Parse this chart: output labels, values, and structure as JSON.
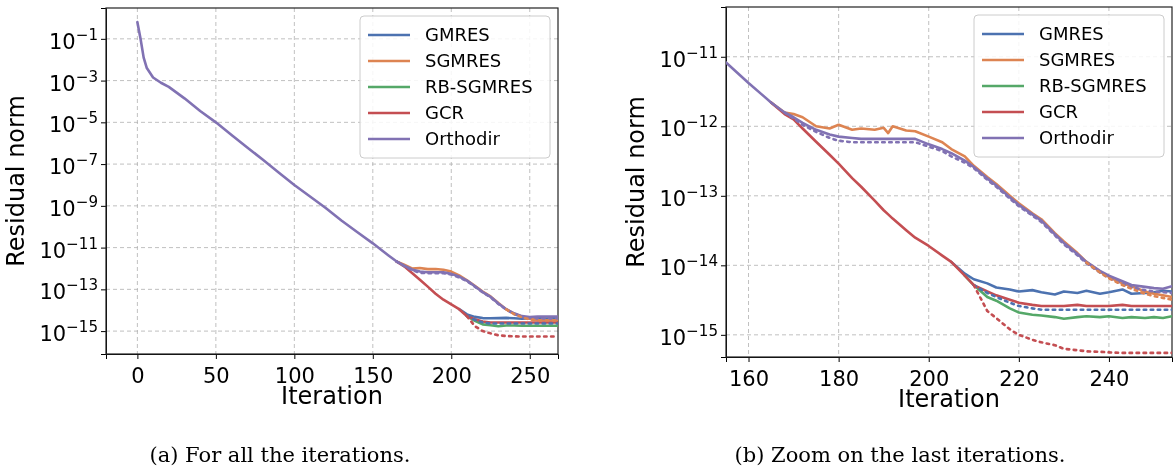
{
  "chart_data": [
    {
      "type": "line",
      "xlabel": "Iteration",
      "ylabel": "Residual norm",
      "log": "y",
      "grid": true,
      "legend": "top right",
      "annotations": [
        "(a) For all the iterations."
      ],
      "xlim": [
        -20,
        268
      ],
      "xticks": [
        0,
        50,
        100,
        150,
        200,
        250
      ],
      "ylim": [
        8e-17,
        3
      ],
      "yticks": [
        {
          "value": 0.1,
          "label": "10$^{−1}$"
        },
        {
          "value": 0.001,
          "label": "10$^{−3}$"
        },
        {
          "value": 1e-05,
          "label": "10$^{−5}$"
        },
        {
          "value": 1e-07,
          "label": "10$^{−7}$"
        },
        {
          "value": 1e-09,
          "label": "10$^{−9}$"
        },
        {
          "value": 1e-11,
          "label": "10$^{−11}$"
        },
        {
          "value": 1e-13,
          "label": "10$^{−13}$"
        },
        {
          "value": 1e-15,
          "label": "10$^{−15}$"
        }
      ],
      "x": [
        0,
        2,
        4,
        6,
        10,
        15,
        20,
        30,
        40,
        50,
        60,
        70,
        80,
        90,
        100,
        110,
        120,
        130,
        140,
        150,
        160,
        165,
        170,
        175,
        180,
        185,
        190,
        195,
        200,
        205,
        210,
        215,
        220,
        225,
        230,
        235,
        240,
        245,
        250,
        255,
        260,
        265,
        268
      ],
      "series": [
        {
          "name": "GMRES",
          "color": "#4c72b0",
          "values": [
            null,
            null,
            null,
            null,
            null,
            null,
            null,
            null,
            null,
            null,
            null,
            null,
            null,
            null,
            null,
            null,
            null,
            null,
            null,
            null,
            null,
            null,
            null,
            null,
            null,
            null,
            null,
            null,
            null,
            1.12e-14,
            6.3e-15,
            4.8e-15,
            4.2e-15,
            4.1e-15,
            4.2e-15,
            4.3e-15,
            4.1e-15,
            3.9e-15,
            4.1e-15,
            4.2e-15,
            4e-15,
            4.1e-15,
            4e-15
          ]
        },
        {
          "name": "SGMRES",
          "color": "#dd8452",
          "values": [
            null,
            null,
            null,
            null,
            null,
            null,
            null,
            null,
            null,
            null,
            null,
            null,
            null,
            null,
            null,
            null,
            null,
            null,
            null,
            null,
            null,
            2.2e-12,
            1.5e-12,
            1e-12,
            1.05e-12,
            9.3e-13,
            9.5e-13,
            8.7e-13,
            7.1e-13,
            4.7e-13,
            2.7e-13,
            1.48e-13,
            7.8e-14,
            4.6e-14,
            2.2e-14,
            1.12e-14,
            6.8e-15,
            5e-15,
            3.9e-15,
            3.4e-15,
            3.3e-15,
            3.3e-15,
            3.3e-15
          ]
        },
        {
          "name": "RB-SGMRES",
          "color": "#55a868",
          "values": [
            null,
            null,
            null,
            null,
            null,
            null,
            null,
            null,
            null,
            null,
            null,
            null,
            null,
            null,
            null,
            null,
            null,
            null,
            null,
            null,
            null,
            null,
            null,
            null,
            null,
            null,
            null,
            null,
            null,
            null,
            5.2e-15,
            3.1e-15,
            2.1e-15,
            1.9e-15,
            1.7e-15,
            1.85e-15,
            1.85e-15,
            1.8e-15,
            1.8e-15,
            1.8e-15,
            1.8e-15,
            1.8e-15,
            1.8e-15
          ]
        },
        {
          "name": "GCR",
          "color": "#c44e52",
          "values": [
            null,
            null,
            null,
            null,
            null,
            null,
            null,
            null,
            null,
            null,
            null,
            null,
            null,
            null,
            null,
            null,
            null,
            null,
            null,
            null,
            null,
            2.2e-12,
            1.26e-12,
            6e-13,
            2.9e-13,
            1.35e-13,
            6.2e-14,
            3.2e-14,
            1.9e-14,
            1.12e-14,
            5.2e-15,
            3.7e-15,
            2.9e-15,
            2.6e-15,
            2.6e-15,
            2.6e-15,
            2.6e-15,
            2.6e-15,
            2.6e-15,
            2.6e-15,
            2.6e-15,
            2.6e-15,
            2.6e-15
          ]
        },
        {
          "name": "Orthodir",
          "color": "#8172b3",
          "values": [
            0.63,
            0.1,
            0.0126,
            0.00398,
            0.00141,
            0.00079,
            0.0005,
            0.000141,
            3.5e-05,
            1e-05,
            2.5e-06,
            6.3e-07,
            1.6e-07,
            4e-08,
            1e-08,
            2.8e-09,
            7.9e-10,
            2e-10,
            5.6e-11,
            1.6e-11,
            4.2e-12,
            2.2e-12,
            1.35e-12,
            8.9e-13,
            7.1e-13,
            6.6e-13,
            6.6e-13,
            6.6e-13,
            5.5e-13,
            4.1e-13,
            2.6e-13,
            1.41e-13,
            7.4e-14,
            4.4e-14,
            2.1e-14,
            1.12e-14,
            7.1e-15,
            5.2e-15,
            4.7e-15,
            5e-15,
            5e-15,
            5e-15,
            5e-15
          ]
        },
        {
          "color": "#8172b3",
          "line_style": "dotted",
          "values": [
            null,
            null,
            null,
            null,
            null,
            null,
            null,
            null,
            null,
            null,
            null,
            null,
            null,
            null,
            null,
            null,
            null,
            null,
            null,
            null,
            null,
            2.2e-12,
            1.3e-12,
            8.3e-13,
            6.2e-13,
            5.9e-13,
            5.9e-13,
            5.9e-13,
            5.1e-13,
            3.7e-13,
            2.5e-13,
            1.35e-13,
            7.1e-14,
            4.2e-14,
            2e-14,
            1.07e-14,
            6.6e-15,
            4.8e-15,
            4.2e-15,
            4e-15,
            4e-15,
            4e-15,
            4e-15
          ]
        },
        {
          "color": "#dd8452",
          "line_style": "dotted",
          "values": [
            null,
            null,
            null,
            null,
            null,
            null,
            null,
            null,
            null,
            null,
            null,
            null,
            null,
            null,
            null,
            null,
            null,
            null,
            null,
            null,
            null,
            null,
            null,
            null,
            null,
            null,
            null,
            null,
            null,
            null,
            null,
            null,
            null,
            null,
            null,
            1.1e-14,
            6.5e-15,
            4.6e-15,
            3.6e-15,
            3.2e-15,
            3.2e-15,
            3.2e-15,
            3.2e-15
          ]
        },
        {
          "color": "#4c72b0",
          "line_style": "dotted",
          "values": [
            null,
            null,
            null,
            null,
            null,
            null,
            null,
            null,
            null,
            null,
            null,
            null,
            null,
            null,
            null,
            null,
            null,
            null,
            null,
            null,
            null,
            null,
            null,
            null,
            null,
            null,
            null,
            null,
            null,
            null,
            5.2e-15,
            3.5e-15,
            2.6e-15,
            2.3e-15,
            2.3e-15,
            2.3e-15,
            2.3e-15,
            2.3e-15,
            2.3e-15,
            2.3e-15,
            2.3e-15,
            2.3e-15,
            2.3e-15
          ]
        },
        {
          "color": "#c44e52",
          "line_style": "dotted",
          "values": [
            null,
            null,
            null,
            null,
            null,
            null,
            null,
            null,
            null,
            null,
            null,
            null,
            null,
            null,
            null,
            null,
            null,
            null,
            null,
            null,
            null,
            null,
            null,
            null,
            null,
            null,
            null,
            null,
            null,
            null,
            5.2e-15,
            1.74e-15,
            1e-15,
            7.8e-16,
            6.3e-16,
            5.8e-16,
            5.6e-16,
            5.5e-16,
            5.5e-16,
            5.5e-16,
            5.5e-16,
            5.5e-16,
            5.5e-16
          ]
        }
      ]
    },
    {
      "type": "line",
      "xlabel": "Iteration",
      "ylabel": "Residual norm",
      "log": "y",
      "grid": true,
      "legend": "top right",
      "annotations": [
        "(b) Zoom on the last iterations."
      ],
      "xlim": [
        155,
        254
      ],
      "xticks": [
        160,
        180,
        200,
        220,
        240
      ],
      "ylim": [
        4.8e-16,
        5.2e-11
      ],
      "yticks": [
        {
          "value": 1e-15,
          "label": "10$^{−15}$"
        },
        {
          "value": 1e-14,
          "label": "10$^{−14}$"
        },
        {
          "value": 1e-13,
          "label": "10$^{−13}$"
        },
        {
          "value": 1e-12,
          "label": "10$^{−12}$"
        },
        {
          "value": 1e-11,
          "label": "10$^{−11}$"
        }
      ],
      "x": [
        155,
        160,
        165,
        168,
        170,
        172,
        175,
        178,
        180,
        183,
        185,
        188,
        190,
        191,
        192,
        195,
        197,
        200,
        203,
        205,
        208,
        210,
        213,
        215,
        218,
        220,
        223,
        225,
        228,
        230,
        233,
        235,
        238,
        240,
        243,
        245,
        248,
        250,
        252,
        254
      ],
      "series": [
        {
          "name": "GMRES",
          "color": "#4c72b0",
          "values": [
            null,
            null,
            null,
            null,
            null,
            null,
            null,
            null,
            null,
            null,
            null,
            null,
            null,
            null,
            null,
            null,
            null,
            null,
            null,
            1.12e-14,
            7.6e-15,
            6.3e-15,
            5.5e-15,
            4.8e-15,
            4.5e-15,
            4.2e-15,
            4.4e-15,
            4.1e-15,
            3.8e-15,
            4.2e-15,
            4e-15,
            4.3e-15,
            3.9e-15,
            4.1e-15,
            4.5e-15,
            3.9e-15,
            4e-15,
            4.1e-15,
            4.3e-15,
            4.2e-15
          ]
        },
        {
          "name": "SGMRES",
          "color": "#dd8452",
          "values": [
            null,
            null,
            2.2e-12,
            1.58e-12,
            1.5e-12,
            1.35e-12,
            1e-12,
            9.3e-13,
            1.05e-12,
            8.9e-13,
            9.3e-13,
            8.9e-13,
            9.5e-13,
            8e-13,
            1e-12,
            8.7e-13,
            8.5e-13,
            7.1e-13,
            5.9e-13,
            4.7e-13,
            3.7e-13,
            2.7e-13,
            1.86e-13,
            1.48e-13,
            1e-13,
            7.8e-14,
            5.6e-14,
            4.6e-14,
            2.9e-14,
            2.2e-14,
            1.5e-14,
            1.12e-14,
            8.1e-15,
            6.8e-15,
            5.5e-15,
            5e-15,
            4.2e-15,
            3.9e-15,
            3.7e-15,
            3.5e-15
          ]
        },
        {
          "name": "RB-SGMRES",
          "color": "#55a868",
          "values": [
            null,
            null,
            null,
            null,
            null,
            null,
            null,
            null,
            null,
            null,
            null,
            null,
            null,
            null,
            null,
            null,
            null,
            null,
            null,
            null,
            7.1e-15,
            5.2e-15,
            3.5e-15,
            3.1e-15,
            2.4e-15,
            2.1e-15,
            1.95e-15,
            1.9e-15,
            1.8e-15,
            1.7e-15,
            1.8e-15,
            1.85e-15,
            1.8e-15,
            1.85e-15,
            1.75e-15,
            1.8e-15,
            1.75e-15,
            1.8e-15,
            1.75e-15,
            1.85e-15
          ]
        },
        {
          "name": "GCR",
          "color": "#c44e52",
          "values": [
            null,
            null,
            2.2e-12,
            1.5e-12,
            1.26e-12,
            9.3e-13,
            6e-13,
            3.9e-13,
            2.9e-13,
            1.8e-13,
            1.35e-13,
            8.5e-14,
            6.2e-14,
            5.4e-14,
            4.7e-14,
            3.2e-14,
            2.5e-14,
            1.9e-14,
            1.38e-14,
            1.12e-14,
            7.1e-15,
            5.2e-15,
            4.2e-15,
            3.7e-15,
            3.2e-15,
            2.9e-15,
            2.7e-15,
            2.6e-15,
            2.6e-15,
            2.6e-15,
            2.7e-15,
            2.6e-15,
            2.6e-15,
            2.6e-15,
            2.7e-15,
            2.6e-15,
            2.6e-15,
            2.6e-15,
            2.6e-15,
            2.6e-15
          ]
        },
        {
          "name": "Orthodir",
          "color": "#8172b3",
          "values": [
            8.3e-12,
            4.2e-12,
            2.2e-12,
            1.58e-12,
            1.35e-12,
            1.12e-12,
            8.9e-13,
            7.6e-13,
            7.1e-13,
            6.8e-13,
            6.6e-13,
            6.6e-13,
            6.6e-13,
            6.6e-13,
            6.6e-13,
            6.6e-13,
            6.6e-13,
            5.5e-13,
            4.7e-13,
            4.1e-13,
            3.2e-13,
            2.6e-13,
            1.78e-13,
            1.41e-13,
            9.5e-14,
            7.4e-14,
            5.4e-14,
            4.4e-14,
            2.8e-14,
            2.1e-14,
            1.45e-14,
            1.12e-14,
            8.3e-15,
            7.1e-15,
            5.9e-15,
            5.2e-15,
            4.9e-15,
            4.7e-15,
            4.6e-15,
            5e-15
          ]
        },
        {
          "color": "#8172b3",
          "line_style": "dotted",
          "values": [
            null,
            null,
            null,
            1.58e-12,
            1.3e-12,
            1.05e-12,
            8.3e-13,
            6.8e-13,
            6.2e-13,
            5.9e-13,
            5.9e-13,
            5.9e-13,
            5.9e-13,
            5.9e-13,
            5.9e-13,
            5.9e-13,
            5.9e-13,
            5.1e-13,
            4.4e-13,
            3.7e-13,
            3e-13,
            2.5e-13,
            1.7e-13,
            1.35e-13,
            9.1e-14,
            7.1e-14,
            5.2e-14,
            4.2e-14,
            2.7e-14,
            2e-14,
            1.4e-14,
            1.07e-14,
            7.9e-15,
            6.6e-15,
            5.4e-15,
            4.8e-15,
            4.4e-15,
            4.2e-15,
            4.1e-15,
            4e-15
          ]
        },
        {
          "color": "#dd8452",
          "line_style": "dotted",
          "values": [
            null,
            null,
            null,
            null,
            null,
            null,
            null,
            null,
            null,
            null,
            null,
            null,
            null,
            null,
            null,
            null,
            null,
            null,
            null,
            null,
            null,
            null,
            null,
            null,
            null,
            null,
            null,
            null,
            null,
            null,
            null,
            1.1e-14,
            7.9e-15,
            6.5e-15,
            5.2e-15,
            4.6e-15,
            3.9e-15,
            3.6e-15,
            3.4e-15,
            3.2e-15
          ]
        },
        {
          "color": "#4c72b0",
          "line_style": "dotted",
          "values": [
            null,
            null,
            null,
            null,
            null,
            null,
            null,
            null,
            null,
            null,
            null,
            null,
            null,
            null,
            null,
            null,
            null,
            null,
            null,
            null,
            null,
            5.2e-15,
            4e-15,
            3.5e-15,
            2.9e-15,
            2.6e-15,
            2.4e-15,
            2.3e-15,
            2.3e-15,
            2.3e-15,
            2.3e-15,
            2.3e-15,
            2.3e-15,
            2.3e-15,
            2.3e-15,
            2.3e-15,
            2.3e-15,
            2.3e-15,
            2.3e-15,
            2.3e-15
          ]
        },
        {
          "color": "#c44e52",
          "line_style": "dotted",
          "values": [
            null,
            null,
            null,
            null,
            null,
            null,
            null,
            null,
            null,
            null,
            null,
            null,
            null,
            null,
            null,
            null,
            null,
            null,
            null,
            null,
            null,
            5.2e-15,
            2.2e-15,
            1.74e-15,
            1.2e-15,
            1e-15,
            8.5e-16,
            7.8e-16,
            7.1e-16,
            6.3e-16,
            6e-16,
            5.8e-16,
            5.7e-16,
            5.6e-16,
            5.5e-16,
            5.5e-16,
            5.5e-16,
            5.5e-16,
            5.5e-16,
            5.5e-16
          ]
        }
      ]
    }
  ]
}
